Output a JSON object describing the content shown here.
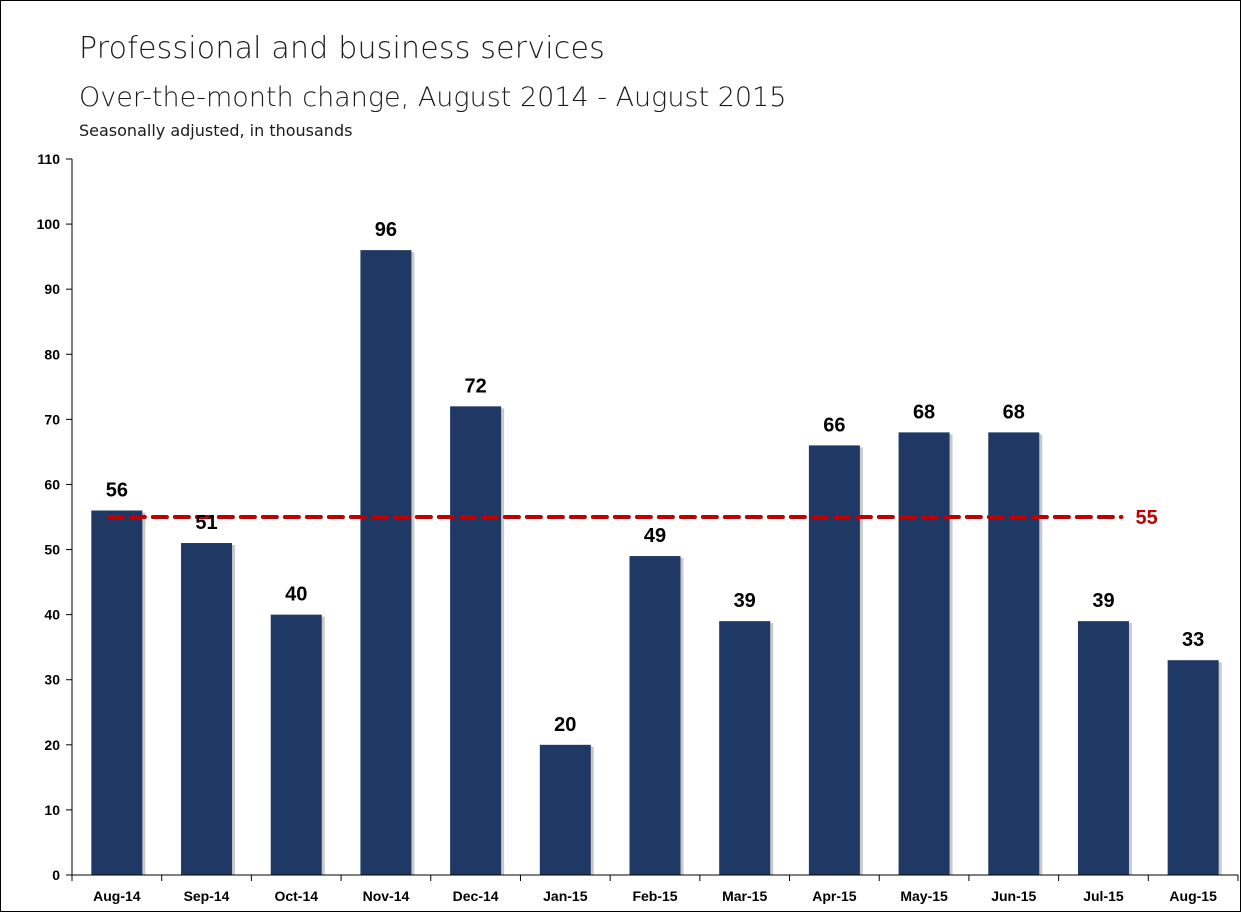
{
  "chart_data": {
    "type": "bar",
    "title": "Professional and business services",
    "subtitle": "Over-the-month change, August 2014 - August 2015",
    "note": "Seasonally adjusted, in thousands",
    "categories": [
      "Aug-14",
      "Sep-14",
      "Oct-14",
      "Nov-14",
      "Dec-14",
      "Jan-15",
      "Feb-15",
      "Mar-15",
      "Apr-15",
      "May-15",
      "Jun-15",
      "Jul-15",
      "Aug-15"
    ],
    "values": [
      56,
      51,
      40,
      96,
      72,
      20,
      49,
      39,
      66,
      68,
      68,
      39,
      33
    ],
    "ylim": [
      0,
      110
    ],
    "yticks": [
      "0",
      "10",
      "20",
      "30",
      "40",
      "50",
      "60",
      "70",
      "80",
      "90",
      "100",
      "110"
    ],
    "reference_line": {
      "value": 55,
      "label": "55",
      "style": "dashed"
    },
    "data_labels": true,
    "grid": false,
    "legend": "none"
  },
  "colors": {
    "bar": "#203864",
    "bar_shadow": "#c9c9c9",
    "reference_line": "#c00000",
    "axis": "#000000"
  }
}
